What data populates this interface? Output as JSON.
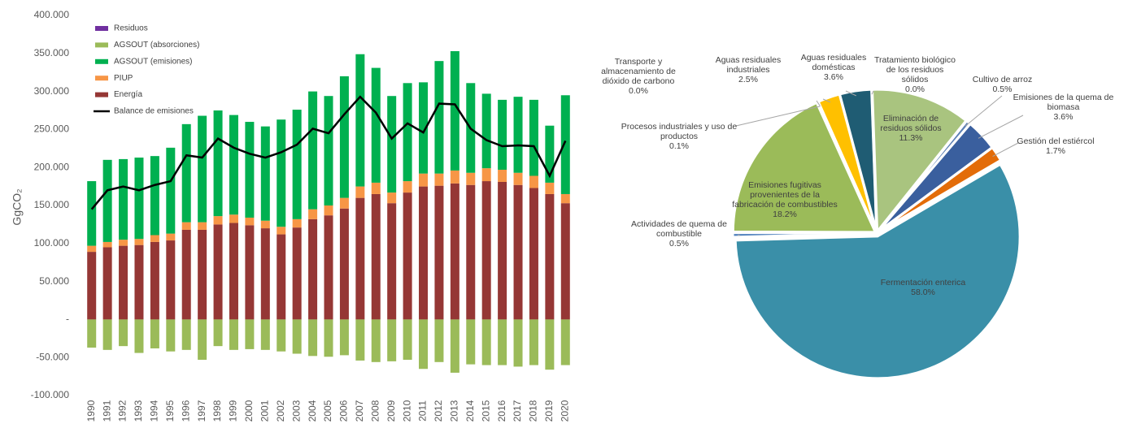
{
  "chart_data": [
    {
      "type": "bar",
      "y_label": "GgCO₂",
      "categories": [
        "1990",
        "1991",
        "1992",
        "1993",
        "1994",
        "1995",
        "1996",
        "1997",
        "1998",
        "1999",
        "2000",
        "2001",
        "2002",
        "2003",
        "2004",
        "2005",
        "2006",
        "2007",
        "2008",
        "2009",
        "2010",
        "2011",
        "2012",
        "2013",
        "2014",
        "2015",
        "2016",
        "2017",
        "2018",
        "2019",
        "2020"
      ],
      "ylim": [
        -100000,
        400000
      ],
      "yticks": [
        {
          "value": -100000,
          "label": "-100.000"
        },
        {
          "value": -50000,
          "label": "-50.000"
        },
        {
          "value": 0,
          "label": "-"
        },
        {
          "value": 50000,
          "label": "50.000"
        },
        {
          "value": 100000,
          "label": "100.000"
        },
        {
          "value": 150000,
          "label": "150.000"
        },
        {
          "value": 200000,
          "label": "200.000"
        },
        {
          "value": 250000,
          "label": "250.000"
        },
        {
          "value": 300000,
          "label": "300.000"
        },
        {
          "value": 350000,
          "label": "350.000"
        },
        {
          "value": 400000,
          "label": "400.000"
        }
      ],
      "grid": false,
      "legend": "upper left",
      "series": [
        {
          "name": "Residuos",
          "color": "#7030a0",
          "values": [
            0,
            0,
            0,
            0,
            0,
            0,
            0,
            0,
            0,
            0,
            0,
            0,
            0,
            0,
            0,
            0,
            0,
            0,
            0,
            0,
            0,
            0,
            0,
            0,
            0,
            0,
            0,
            0,
            0,
            0,
            0
          ]
        },
        {
          "name": "AGSOUT (absorciones)",
          "color": "#9bbb59",
          "values": [
            -37000,
            -40000,
            -35000,
            -44000,
            -38000,
            -42000,
            -40000,
            -53000,
            -35000,
            -40000,
            -39000,
            -40000,
            -42000,
            -45000,
            -48000,
            -49000,
            -47000,
            -54000,
            -56000,
            -55000,
            -53000,
            -65000,
            -56000,
            -70000,
            -59000,
            -60000,
            -60000,
            -62000,
            -60000,
            -66000,
            -60000
          ]
        },
        {
          "name": "AGSOUT (emisiones)",
          "color": "#00b050",
          "values": [
            85000,
            108000,
            106000,
            107000,
            104000,
            113000,
            129000,
            140000,
            139000,
            131000,
            126000,
            124000,
            141000,
            144000,
            155000,
            144000,
            160000,
            174000,
            151000,
            127000,
            129000,
            120000,
            148000,
            157000,
            118000,
            98000,
            92000,
            100000,
            100000,
            75000,
            130000
          ]
        },
        {
          "name": "PIUP",
          "color": "#f79646",
          "values": [
            8000,
            7000,
            8000,
            8000,
            9000,
            9000,
            10000,
            10000,
            11000,
            11000,
            10000,
            10000,
            10000,
            11000,
            13000,
            13000,
            14000,
            15000,
            15000,
            14000,
            15000,
            17000,
            16000,
            17000,
            16000,
            17000,
            16000,
            16000,
            16000,
            15000,
            12000
          ]
        },
        {
          "name": "Energía",
          "color": "#953735",
          "values": [
            89000,
            95000,
            97000,
            98000,
            102000,
            104000,
            118000,
            118000,
            125000,
            127000,
            124000,
            120000,
            112000,
            121000,
            132000,
            137000,
            146000,
            160000,
            165000,
            153000,
            167000,
            175000,
            176000,
            179000,
            177000,
            182000,
            181000,
            177000,
            173000,
            165000,
            153000
          ]
        },
        {
          "name": "Balance de emisiones",
          "color": "#000000",
          "type": "line",
          "values": [
            145000,
            170000,
            175000,
            170000,
            177000,
            182000,
            216000,
            213000,
            238000,
            226000,
            218000,
            213000,
            220000,
            230000,
            251000,
            245000,
            270000,
            293000,
            272000,
            238000,
            258000,
            246000,
            284000,
            283000,
            251000,
            236000,
            228000,
            229000,
            228000,
            189000,
            235000
          ]
        }
      ]
    },
    {
      "type": "pie",
      "categories": [
        "Eliminación de residuos sólidos",
        "Cultivo de arroz",
        "Emisiones de la quema de biomasa",
        "Gestión del estiércol",
        "Fermentación enterica",
        "Actividades de quema de combustible",
        "Emisiones fugitivas provenientes de la fabricación de combustibles",
        "Procesos industriales y uso de productos",
        "Transporte y almacenamiento de dióxido de carbono",
        "Aguas residuales industriales",
        "Aguas residuales domésticas",
        "Tratamiento biológico de los residuos sólidos"
      ],
      "values": [
        11.3,
        0.5,
        3.6,
        1.7,
        58.0,
        0.5,
        18.2,
        0.1,
        0.0,
        2.5,
        3.6,
        0.0
      ],
      "value_labels": [
        "11.3%",
        "0.5%",
        "3.6%",
        "1.7%",
        "58.0%",
        "0.5%",
        "18.2%",
        "0.1%",
        "0.0%",
        "2.5%",
        "3.6%",
        "0.0%"
      ],
      "colors": [
        "#a9c47f",
        "#5b7fb5",
        "#3a5f9e",
        "#e36c09",
        "#3a8fa8",
        "#4f81bd",
        "#9bbb59",
        "#8064a2",
        "#4bacc6",
        "#ffc000",
        "#1f5c73",
        "#c0504d"
      ]
    }
  ]
}
